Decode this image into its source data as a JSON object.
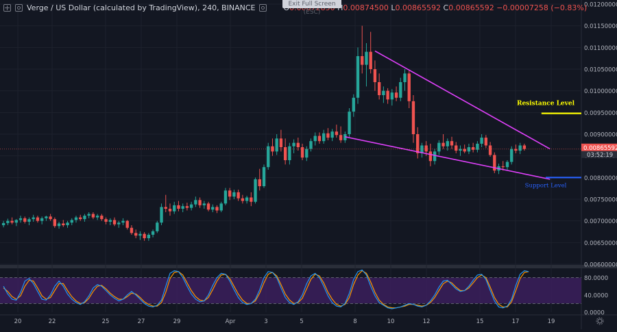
{
  "header": {
    "symbol": "Verge / US Dollar (calculated by TradingView), 240, BINANCE",
    "ohlc": {
      "o_label": "O",
      "o": "0.00872850",
      "h_label": "H",
      "h": "0.00874500",
      "l_label": "L",
      "l": "0.00865592",
      "c_label": "C",
      "c": "0.00865592",
      "change": "−0.00007258 (−0.83%)"
    },
    "exit_fullscreen": "Exit Full Screen (ESC)"
  },
  "icons": [
    "expand-icon",
    "settings-icon",
    "gear-icon"
  ],
  "colors": {
    "bg": "#131722",
    "up": "#26a69a",
    "down": "#ef5350",
    "wedge": "#e040fb",
    "resistance": "#ffff00",
    "support": "#2962ff",
    "stoch_bg": "#3b1f5c",
    "stoch_k": "#2196f3",
    "stoch_d": "#ff9800"
  },
  "price_axis": {
    "ticks": [
      "0.01200000",
      "0.01150000",
      "0.01100000",
      "0.01050000",
      "0.01000000",
      "0.00950000",
      "0.00900000",
      "0.00850000",
      "0.00800000",
      "0.00750000",
      "0.00700000",
      "0.00650000",
      "0.00600000"
    ],
    "last_price": "0.00865592",
    "countdown": "03:52:19"
  },
  "stoch_axis": {
    "ticks": [
      "80.0000",
      "40.0000",
      "0.0000"
    ]
  },
  "time_axis": {
    "ticks": [
      "20",
      "22",
      "25",
      "27",
      "29",
      "Apr",
      "3",
      "5",
      "8",
      "10",
      "12",
      "15",
      "17",
      "19"
    ]
  },
  "annotations": {
    "resistance": "Resistance Level",
    "support": "Support Level"
  },
  "chart_data": {
    "type": "candlestick",
    "ylim": [
      0.006,
      0.012
    ],
    "candles": [
      [
        0.0069,
        0.007,
        0.00685,
        0.00695
      ],
      [
        0.00695,
        0.00705,
        0.0069,
        0.007
      ],
      [
        0.007,
        0.00708,
        0.00692,
        0.00696
      ],
      [
        0.00696,
        0.00704,
        0.00688,
        0.00702
      ],
      [
        0.00702,
        0.00712,
        0.00696,
        0.00706
      ],
      [
        0.00706,
        0.0071,
        0.00694,
        0.00698
      ],
      [
        0.00698,
        0.00708,
        0.0069,
        0.00704
      ],
      [
        0.00704,
        0.00714,
        0.00698,
        0.00708
      ],
      [
        0.00708,
        0.00712,
        0.00696,
        0.007
      ],
      [
        0.007,
        0.0071,
        0.00692,
        0.00706
      ],
      [
        0.00706,
        0.00712,
        0.007,
        0.0071
      ],
      [
        0.0071,
        0.00716,
        0.007,
        0.00704
      ],
      [
        0.00704,
        0.00708,
        0.00684,
        0.00688
      ],
      [
        0.00688,
        0.00698,
        0.00682,
        0.00694
      ],
      [
        0.00694,
        0.00702,
        0.00686,
        0.0069
      ],
      [
        0.0069,
        0.007,
        0.00684,
        0.00696
      ],
      [
        0.00696,
        0.00706,
        0.0069,
        0.00702
      ],
      [
        0.00702,
        0.00712,
        0.00696,
        0.00708
      ],
      [
        0.00708,
        0.00714,
        0.007,
        0.00704
      ],
      [
        0.00704,
        0.00716,
        0.00698,
        0.00712
      ],
      [
        0.00712,
        0.0072,
        0.00706,
        0.00716
      ],
      [
        0.00716,
        0.0072,
        0.00704,
        0.00708
      ],
      [
        0.00708,
        0.00716,
        0.00702,
        0.00712
      ],
      [
        0.00712,
        0.00716,
        0.007,
        0.00704
      ],
      [
        0.00704,
        0.00708,
        0.00692,
        0.00698
      ],
      [
        0.00698,
        0.00706,
        0.0069,
        0.00702
      ],
      [
        0.00702,
        0.00708,
        0.00688,
        0.00692
      ],
      [
        0.00692,
        0.007,
        0.00684,
        0.00696
      ],
      [
        0.00696,
        0.00706,
        0.0069,
        0.007
      ],
      [
        0.007,
        0.00702,
        0.0068,
        0.00684
      ],
      [
        0.00684,
        0.0069,
        0.00668,
        0.00672
      ],
      [
        0.00672,
        0.0068,
        0.0066,
        0.00666
      ],
      [
        0.00666,
        0.00676,
        0.00656,
        0.0067
      ],
      [
        0.0067,
        0.00674,
        0.00654,
        0.0066
      ],
      [
        0.0066,
        0.00672,
        0.00654,
        0.00668
      ],
      [
        0.00668,
        0.0068,
        0.00662,
        0.00676
      ],
      [
        0.00676,
        0.007,
        0.00672,
        0.00696
      ],
      [
        0.00696,
        0.0074,
        0.0069,
        0.00732
      ],
      [
        0.00732,
        0.0076,
        0.0072,
        0.00728
      ],
      [
        0.00728,
        0.0074,
        0.00712,
        0.00722
      ],
      [
        0.00722,
        0.00744,
        0.00716,
        0.00736
      ],
      [
        0.00736,
        0.00746,
        0.00722,
        0.00728
      ],
      [
        0.00728,
        0.0074,
        0.0072,
        0.00734
      ],
      [
        0.00734,
        0.00742,
        0.00724,
        0.0073
      ],
      [
        0.0073,
        0.00744,
        0.00724,
        0.00738
      ],
      [
        0.00738,
        0.00756,
        0.00732,
        0.00748
      ],
      [
        0.00748,
        0.00754,
        0.0073,
        0.00736
      ],
      [
        0.00736,
        0.00746,
        0.00728,
        0.0074
      ],
      [
        0.0074,
        0.00744,
        0.00722,
        0.00726
      ],
      [
        0.00726,
        0.00738,
        0.0072,
        0.00732
      ],
      [
        0.00732,
        0.00736,
        0.00718,
        0.00724
      ],
      [
        0.00724,
        0.00744,
        0.0072,
        0.0074
      ],
      [
        0.0074,
        0.00776,
        0.00736,
        0.0077
      ],
      [
        0.0077,
        0.00776,
        0.00748,
        0.00756
      ],
      [
        0.00756,
        0.00772,
        0.0075,
        0.00766
      ],
      [
        0.00766,
        0.00772,
        0.00746,
        0.00752
      ],
      [
        0.00752,
        0.0076,
        0.0074,
        0.00746
      ],
      [
        0.00746,
        0.00758,
        0.0074,
        0.00754
      ],
      [
        0.00754,
        0.00766,
        0.00734,
        0.00744
      ],
      [
        0.00744,
        0.008,
        0.0074,
        0.00796
      ],
      [
        0.00796,
        0.0082,
        0.0077,
        0.0078
      ],
      [
        0.0078,
        0.0083,
        0.00776,
        0.00824
      ],
      [
        0.00824,
        0.0088,
        0.00818,
        0.00872
      ],
      [
        0.00872,
        0.0089,
        0.0085,
        0.0086
      ],
      [
        0.0086,
        0.009,
        0.00852,
        0.0089
      ],
      [
        0.0089,
        0.0091,
        0.0086,
        0.0087
      ],
      [
        0.0087,
        0.0089,
        0.0083,
        0.0084
      ],
      [
        0.0084,
        0.0088,
        0.0083,
        0.00872
      ],
      [
        0.00872,
        0.00888,
        0.00856,
        0.0088
      ],
      [
        0.0088,
        0.00892,
        0.00862,
        0.0087
      ],
      [
        0.0087,
        0.00878,
        0.0084,
        0.00846
      ],
      [
        0.00846,
        0.00872,
        0.00838,
        0.00866
      ],
      [
        0.00866,
        0.0089,
        0.0086,
        0.00884
      ],
      [
        0.00884,
        0.00904,
        0.00874,
        0.00896
      ],
      [
        0.00896,
        0.00904,
        0.00878,
        0.00884
      ],
      [
        0.00884,
        0.0091,
        0.00878,
        0.00902
      ],
      [
        0.00902,
        0.00914,
        0.00886,
        0.00892
      ],
      [
        0.00892,
        0.00912,
        0.00884,
        0.00906
      ],
      [
        0.00906,
        0.00922,
        0.00892,
        0.00898
      ],
      [
        0.00898,
        0.00918,
        0.0088,
        0.00886
      ],
      [
        0.00886,
        0.00906,
        0.0088,
        0.009
      ],
      [
        0.009,
        0.0096,
        0.00894,
        0.00952
      ],
      [
        0.00952,
        0.00992,
        0.0094,
        0.00984
      ],
      [
        0.00984,
        0.011,
        0.0097,
        0.0108
      ],
      [
        0.0108,
        0.0115,
        0.0104,
        0.0106
      ],
      [
        0.0106,
        0.0111,
        0.0101,
        0.0109
      ],
      [
        0.0109,
        0.01136,
        0.0104,
        0.0105
      ],
      [
        0.0105,
        0.0107,
        0.01,
        0.0102
      ],
      [
        0.0102,
        0.0104,
        0.0098,
        0.0099
      ],
      [
        0.0099,
        0.0101,
        0.00972,
        0.01
      ],
      [
        0.01,
        0.01006,
        0.0097,
        0.0098
      ],
      [
        0.0098,
        0.01004,
        0.00966,
        0.00996
      ],
      [
        0.00996,
        0.0101,
        0.00976,
        0.00984
      ],
      [
        0.00984,
        0.0103,
        0.00976,
        0.0102
      ],
      [
        0.0102,
        0.0105,
        0.01,
        0.0104
      ],
      [
        0.0104,
        0.01046,
        0.0096,
        0.00976
      ],
      [
        0.00976,
        0.0099,
        0.0088,
        0.009
      ],
      [
        0.009,
        0.00916,
        0.00844,
        0.00856
      ],
      [
        0.00856,
        0.0088,
        0.00846,
        0.00874
      ],
      [
        0.00874,
        0.00884,
        0.0085,
        0.0086
      ],
      [
        0.0086,
        0.00878,
        0.00826,
        0.00838
      ],
      [
        0.00838,
        0.00866,
        0.0083,
        0.0086
      ],
      [
        0.0086,
        0.00886,
        0.00852,
        0.0088
      ],
      [
        0.0088,
        0.009,
        0.00866,
        0.00872
      ],
      [
        0.00872,
        0.0089,
        0.00862,
        0.00884
      ],
      [
        0.00884,
        0.00894,
        0.00866,
        0.00874
      ],
      [
        0.00874,
        0.00882,
        0.00856,
        0.00862
      ],
      [
        0.00862,
        0.00874,
        0.0085,
        0.00866
      ],
      [
        0.00866,
        0.00876,
        0.00856,
        0.0086
      ],
      [
        0.0086,
        0.00878,
        0.00854,
        0.0087
      ],
      [
        0.0087,
        0.0088,
        0.00858,
        0.00864
      ],
      [
        0.00864,
        0.00884,
        0.00858,
        0.00878
      ],
      [
        0.00878,
        0.009,
        0.0087,
        0.00892
      ],
      [
        0.00892,
        0.00898,
        0.00868,
        0.00874
      ],
      [
        0.00874,
        0.00882,
        0.00848,
        0.00852
      ],
      [
        0.00852,
        0.00858,
        0.0081,
        0.00816
      ],
      [
        0.00816,
        0.00832,
        0.00808,
        0.00826
      ],
      [
        0.00826,
        0.00838,
        0.00816,
        0.00824
      ],
      [
        0.00824,
        0.0084,
        0.00818,
        0.00836
      ],
      [
        0.00836,
        0.00872,
        0.0083,
        0.00866
      ],
      [
        0.00866,
        0.00876,
        0.00856,
        0.00862
      ],
      [
        0.00862,
        0.0088,
        0.00854,
        0.00874
      ],
      [
        0.00874,
        0.00878,
        0.00862,
        0.00866
      ]
    ],
    "trendlines": [
      {
        "name": "wedge-upper",
        "from": [
          87,
          0.01092
        ],
        "to": [
          128,
          0.00866
        ]
      },
      {
        "name": "wedge-lower",
        "from": [
          80,
          0.00894
        ],
        "to": [
          128,
          0.00796
        ]
      }
    ],
    "levels": [
      {
        "name": "resistance",
        "value": 0.00948,
        "from": 126
      },
      {
        "name": "support",
        "value": 0.008,
        "from": 127
      }
    ],
    "stochastic": {
      "ylim": [
        0,
        100
      ],
      "bands": [
        20,
        80
      ],
      "k": [
        60,
        42,
        30,
        28,
        46,
        72,
        78,
        66,
        48,
        30,
        28,
        40,
        60,
        72,
        60,
        42,
        30,
        22,
        18,
        24,
        38,
        56,
        64,
        60,
        50,
        40,
        32,
        26,
        30,
        40,
        48,
        40,
        30,
        20,
        14,
        12,
        16,
        28,
        60,
        90,
        96,
        94,
        80,
        60,
        42,
        30,
        24,
        26,
        40,
        62,
        80,
        90,
        88,
        72,
        52,
        34,
        22,
        18,
        20,
        30,
        52,
        80,
        94,
        92,
        80,
        56,
        34,
        22,
        18,
        24,
        40,
        66,
        84,
        90,
        80,
        60,
        38,
        22,
        14,
        12,
        20,
        44,
        76,
        94,
        98,
        86,
        60,
        38,
        22,
        16,
        10,
        8,
        10,
        12,
        16,
        20,
        18,
        14,
        12,
        16,
        26,
        40,
        58,
        72,
        74,
        64,
        54,
        48,
        50,
        60,
        74,
        86,
        88,
        76,
        50,
        26,
        12,
        10,
        14,
        30,
        62,
        88,
        96,
        94
      ],
      "d": [
        56,
        48,
        36,
        30,
        38,
        60,
        74,
        72,
        56,
        38,
        30,
        34,
        50,
        66,
        66,
        50,
        36,
        26,
        20,
        22,
        32,
        48,
        60,
        62,
        54,
        44,
        36,
        30,
        30,
        36,
        44,
        42,
        34,
        24,
        18,
        14,
        14,
        22,
        46,
        78,
        92,
        94,
        86,
        68,
        50,
        36,
        28,
        26,
        34,
        52,
        72,
        86,
        88,
        78,
        60,
        42,
        28,
        20,
        20,
        26,
        44,
        68,
        88,
        92,
        84,
        64,
        42,
        28,
        20,
        22,
        32,
        54,
        76,
        88,
        84,
        68,
        46,
        30,
        18,
        14,
        18,
        34,
        64,
        86,
        96,
        90,
        70,
        46,
        28,
        18,
        12,
        10,
        10,
        12,
        14,
        18,
        18,
        16,
        14,
        16,
        22,
        34,
        50,
        66,
        72,
        68,
        58,
        50,
        50,
        56,
        68,
        80,
        86,
        80,
        58,
        34,
        18,
        12,
        12,
        24,
        50,
        78,
        92,
        94
      ]
    }
  }
}
